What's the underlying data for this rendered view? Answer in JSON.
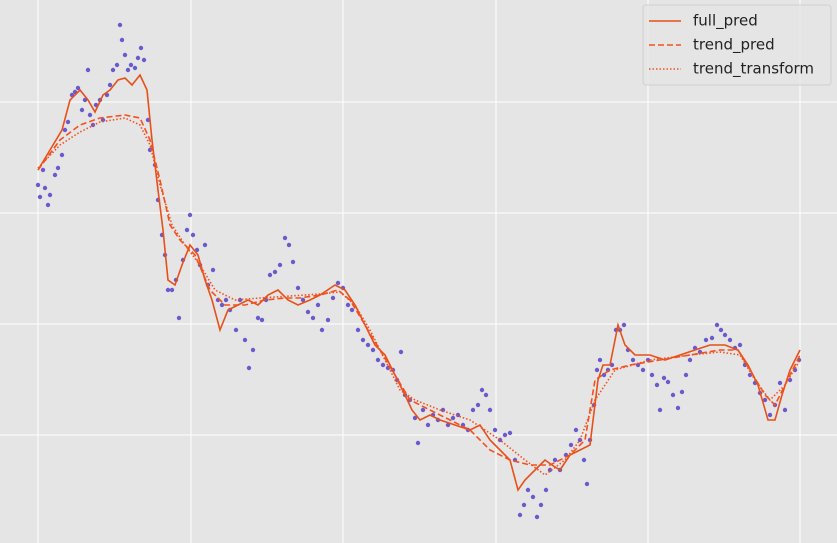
{
  "chart_data": {
    "type": "line",
    "grid": true,
    "legend": "upper right",
    "xlim": [
      0,
      837
    ],
    "ylim": [
      0,
      543
    ],
    "xticks": [
      38,
      191,
      343,
      496,
      648,
      800
    ],
    "yticks": [
      108,
      219,
      330,
      441
    ],
    "series": [
      {
        "type": "scatter",
        "color": "#6a5acd",
        "x": [
          38,
          40,
          43,
          45,
          48,
          50,
          55,
          58,
          62,
          65,
          68,
          72,
          75,
          78,
          82,
          85,
          88,
          90,
          93,
          96,
          100,
          103,
          107,
          110,
          113,
          117,
          120,
          122,
          125,
          128,
          131,
          135,
          138,
          141,
          144,
          148,
          150,
          155,
          158,
          162,
          165,
          168,
          172,
          176,
          179,
          183,
          187,
          190,
          193,
          197,
          200,
          205,
          208,
          213,
          218,
          222,
          226,
          230,
          236,
          240,
          245,
          249,
          253,
          258,
          262,
          266,
          270,
          275,
          280,
          285,
          289,
          293,
          298,
          303,
          308,
          313,
          318,
          322,
          328,
          333,
          338,
          343,
          348,
          352,
          358,
          363,
          368,
          373,
          378,
          383,
          388,
          393,
          397,
          401,
          405,
          410,
          415,
          418,
          423,
          428,
          433,
          438,
          443,
          448,
          453,
          458,
          463,
          468,
          473,
          478,
          482,
          486,
          490,
          495,
          500,
          505,
          510,
          515,
          520,
          524,
          528,
          533,
          537,
          541,
          546,
          550,
          555,
          560,
          566,
          571,
          576,
          580,
          584,
          587,
          590,
          594,
          597,
          600,
          604,
          608,
          612,
          616,
          620,
          624,
          628,
          633,
          638,
          643,
          648,
          652,
          657,
          660,
          664,
          668,
          673,
          678,
          682,
          686,
          690,
          695,
          700,
          706,
          712,
          717,
          721,
          725,
          730,
          735,
          740,
          745,
          750,
          755,
          760,
          765,
          770,
          775,
          780,
          785,
          790,
          795,
          799
        ],
        "values": [
          358,
          346,
          373,
          355,
          338,
          348,
          368,
          375,
          388,
          413,
          421,
          448,
          451,
          455,
          433,
          443,
          473,
          428,
          418,
          438,
          443,
          423,
          448,
          458,
          473,
          478,
          518,
          503,
          488,
          473,
          478,
          475,
          485,
          495,
          483,
          423,
          393,
          378,
          343,
          308,
          288,
          253,
          253,
          263,
          225,
          283,
          313,
          328,
          308,
          293,
          278,
          298,
          258,
          273,
          243,
          238,
          243,
          233,
          213,
          243,
          203,
          175,
          193,
          225,
          223,
          243,
          268,
          271,
          278,
          305,
          298,
          281,
          255,
          243,
          231,
          225,
          238,
          213,
          223,
          245,
          260,
          255,
          238,
          233,
          213,
          203,
          198,
          193,
          183,
          178,
          175,
          173,
          163,
          191,
          148,
          143,
          125,
          100,
          133,
          118,
          128,
          123,
          133,
          118,
          125,
          128,
          118,
          113,
          133,
          138,
          153,
          148,
          133,
          113,
          103,
          108,
          110,
          83,
          28,
          38,
          53,
          46,
          26,
          38,
          53,
          73,
          83,
          73,
          88,
          98,
          113,
          103,
          83,
          59,
          103,
          138,
          173,
          183,
          168,
          173,
          178,
          213,
          213,
          218,
          193,
          183,
          178,
          173,
          183,
          168,
          158,
          133,
          165,
          161,
          148,
          135,
          151,
          168,
          183,
          195,
          191,
          203,
          205,
          218,
          213,
          208,
          203,
          195,
          198,
          178,
          168,
          160,
          150,
          143,
          128,
          138,
          160,
          133,
          163,
          173,
          183
        ]
      },
      {
        "name": "full_pred",
        "color": "#e8501a",
        "style": "solid",
        "x": [
          38,
          50,
          62,
          70,
          80,
          88,
          95,
          103,
          110,
          118,
          125,
          132,
          140,
          147,
          152,
          158,
          163,
          168,
          175,
          182,
          190,
          198,
          205,
          212,
          220,
          228,
          238,
          248,
          258,
          268,
          278,
          288,
          298,
          310,
          320,
          335,
          345,
          355,
          365,
          375,
          385,
          395,
          405,
          412,
          420,
          430,
          440,
          455,
          470,
          480,
          490,
          500,
          510,
          518,
          525,
          535,
          545,
          552,
          560,
          570,
          580,
          590,
          598,
          603,
          610,
          618,
          625,
          635,
          650,
          665,
          680,
          695,
          710,
          725,
          738,
          748,
          758,
          768,
          775,
          782,
          790,
          800
        ],
        "values": [
          373,
          393,
          413,
          443,
          453,
          443,
          431,
          448,
          453,
          463,
          465,
          458,
          468,
          453,
          403,
          353,
          313,
          263,
          258,
          278,
          298,
          288,
          263,
          243,
          213,
          233,
          238,
          243,
          238,
          248,
          253,
          243,
          238,
          243,
          248,
          258,
          253,
          238,
          218,
          198,
          188,
          168,
          148,
          133,
          123,
          128,
          123,
          118,
          113,
          118,
          103,
          93,
          83,
          53,
          63,
          73,
          83,
          78,
          73,
          88,
          93,
          98,
          163,
          178,
          178,
          218,
          198,
          188,
          188,
          183,
          188,
          193,
          198,
          198,
          193,
          178,
          158,
          123,
          123,
          148,
          173,
          193
        ]
      },
      {
        "name": "trend_pred",
        "color": "#f4511e",
        "style": "dashed",
        "x": [
          38,
          60,
          80,
          100,
          125,
          140,
          150,
          160,
          170,
          180,
          195,
          210,
          225,
          245,
          265,
          285,
          300,
          320,
          338,
          350,
          365,
          380,
          395,
          410,
          430,
          450,
          470,
          490,
          510,
          530,
          550,
          570,
          585,
          595,
          610,
          630,
          660,
          690,
          720,
          738,
          750,
          765,
          775,
          790,
          800
        ],
        "values": [
          373,
          403,
          418,
          425,
          428,
          425,
          403,
          363,
          318,
          303,
          288,
          253,
          238,
          238,
          243,
          245,
          245,
          248,
          253,
          243,
          218,
          193,
          168,
          143,
          133,
          123,
          113,
          93,
          83,
          78,
          78,
          88,
          103,
          163,
          173,
          178,
          183,
          188,
          193,
          193,
          173,
          148,
          138,
          168,
          188
        ]
      },
      {
        "name": "trend_transform",
        "color": "#f4511e",
        "style": "dotted",
        "x": [
          38,
          60,
          80,
          100,
          125,
          140,
          150,
          160,
          172,
          185,
          200,
          215,
          235,
          260,
          290,
          320,
          340,
          355,
          370,
          385,
          400,
          415,
          440,
          470,
          500,
          525,
          545,
          565,
          580,
          595,
          615,
          650,
          690,
          720,
          740,
          755,
          770,
          785,
          800
        ],
        "values": [
          375,
          398,
          411,
          421,
          425,
          418,
          398,
          358,
          318,
          298,
          278,
          253,
          243,
          245,
          247,
          249,
          251,
          238,
          213,
          183,
          153,
          143,
          133,
          123,
          103,
          83,
          68,
          83,
          103,
          143,
          173,
          183,
          188,
          191,
          188,
          163,
          143,
          158,
          183
        ]
      }
    ]
  }
}
